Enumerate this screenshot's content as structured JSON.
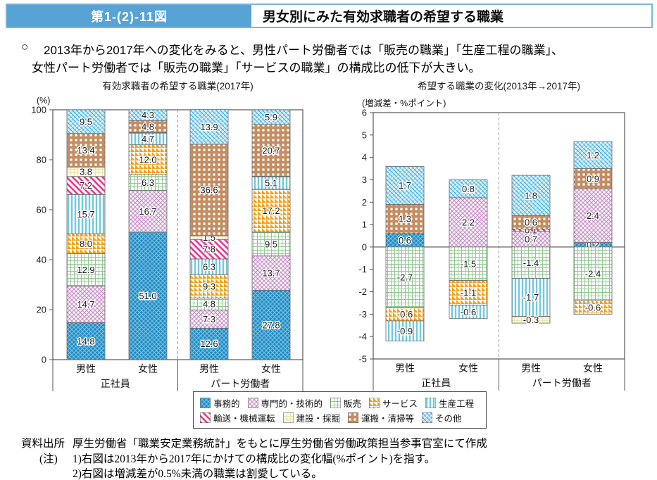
{
  "header": {
    "figure_no": "第1-(2)-11図",
    "title": "男女別にみた有効求職者の希望する職業"
  },
  "summary": {
    "bullet": "○",
    "line1": "2013年から2017年への変化をみると、男性パート労働者では「販売の職業」「生産工程の職業」、",
    "line2": "女性パート労働者では「販売の職業」「サービスの職業」の構成比の低下が大きい。"
  },
  "palette": {
    "header_fill": "#58a3d6",
    "header_border": "#7ab5e0",
    "axis": "#555555",
    "divider": "#999999",
    "segment_border": "#6a6a6a",
    "label_text": "#1b1b1b"
  },
  "categories": [
    {
      "id": "jimu",
      "label": "事務的",
      "pat": "weave",
      "base": "#2287bd",
      "fg": "#6fc0e6"
    },
    {
      "id": "senmon",
      "label": "専門的・技術的",
      "pat": "weave",
      "base": "#fdf6fd",
      "fg": "#c793c7"
    },
    {
      "id": "hanbai",
      "label": "販売",
      "pat": "grid",
      "base": "#ffffff",
      "fg": "#90c890"
    },
    {
      "id": "service",
      "label": "サービス",
      "pat": "triangles",
      "base": "#f5a11f",
      "fg": "#ffffff"
    },
    {
      "id": "seisan",
      "label": "生産工程",
      "pat": "vstripes",
      "base": "#ffffff",
      "fg": "#72c8dd"
    },
    {
      "id": "yuso",
      "label": "輸送・機械運転",
      "pat": "dstripes",
      "base": "#ffffff",
      "fg": "#e5368a"
    },
    {
      "id": "kensetsu",
      "label": "建設・採掘",
      "pat": "grid",
      "base": "#faf8df",
      "fg": "#e7e3b2"
    },
    {
      "id": "unpan",
      "label": "運搬・清掃等",
      "pat": "dots",
      "base": "#c28d5e",
      "fg": "#ffffff",
      "fg2": "#e2808f"
    },
    {
      "id": "sonota",
      "label": "その他",
      "pat": "weave2",
      "base": "#b3e2f5",
      "fg": "#47aede",
      "fg2": "#ffffff"
    }
  ],
  "legend_rows": [
    [
      "jimu",
      "senmon",
      "hanbai",
      "service",
      "seisan"
    ],
    [
      "yuso",
      "kensetsu",
      "unpan",
      "sonota"
    ]
  ],
  "chart_data": [
    {
      "type": "bar",
      "stacked": true,
      "title": "有効求職者の希望する職業(2017年)",
      "unit_label": "(%)",
      "ylim": [
        0,
        100
      ],
      "yticks": [
        0,
        20,
        40,
        60,
        80,
        100
      ],
      "zero_line": false,
      "groups": [
        {
          "label": "正社員",
          "bars": [
            {
              "label": "男性",
              "segments": [
                {
                  "c": "jimu",
                  "v": 14.8
                },
                {
                  "c": "senmon",
                  "v": 14.7
                },
                {
                  "c": "hanbai",
                  "v": 12.9
                },
                {
                  "c": "service",
                  "v": 8.0
                },
                {
                  "c": "seisan",
                  "v": 15.7
                },
                {
                  "c": "yuso",
                  "v": 7.2
                },
                {
                  "c": "kensetsu",
                  "v": 3.8
                },
                {
                  "c": "unpan",
                  "v": 13.4
                },
                {
                  "c": "sonota",
                  "v": 9.5
                }
              ]
            },
            {
              "label": "女性",
              "segments": [
                {
                  "c": "jimu",
                  "v": 51.0
                },
                {
                  "c": "senmon",
                  "v": 16.7
                },
                {
                  "c": "hanbai",
                  "v": 6.3
                },
                {
                  "c": "service",
                  "v": 12.0
                },
                {
                  "c": "seisan",
                  "v": 4.7
                },
                {
                  "c": "yuso",
                  "v": 0.2,
                  "hide": true
                },
                {
                  "c": "unpan",
                  "v": 4.8
                },
                {
                  "c": "sonota",
                  "v": 4.3
                }
              ]
            }
          ]
        },
        {
          "label": "パート労働者",
          "bars": [
            {
              "label": "男性",
              "segments": [
                {
                  "c": "jimu",
                  "v": 12.6
                },
                {
                  "c": "senmon",
                  "v": 7.3
                },
                {
                  "c": "hanbai",
                  "v": 4.8
                },
                {
                  "c": "service",
                  "v": 9.3
                },
                {
                  "c": "seisan",
                  "v": 6.3
                },
                {
                  "c": "yuso",
                  "v": 7.8
                },
                {
                  "c": "kensetsu",
                  "v": 1.5
                },
                {
                  "c": "unpan",
                  "v": 36.6
                },
                {
                  "c": "sonota",
                  "v": 13.9
                }
              ]
            },
            {
              "label": "女性",
              "segments": [
                {
                  "c": "jimu",
                  "v": 27.8
                },
                {
                  "c": "senmon",
                  "v": 13.7
                },
                {
                  "c": "hanbai",
                  "v": 9.5
                },
                {
                  "c": "service",
                  "v": 17.2
                },
                {
                  "c": "seisan",
                  "v": 5.1
                },
                {
                  "c": "yuso",
                  "v": 0.1,
                  "hide": true
                },
                {
                  "c": "unpan",
                  "v": 20.7
                },
                {
                  "c": "sonota",
                  "v": 5.9
                }
              ]
            }
          ]
        }
      ]
    },
    {
      "type": "bar",
      "stacked": true,
      "title": "希望する職業の変化(2013年→2017年)",
      "unit_label": "(増減差・%ポイント)",
      "ylim": [
        -5,
        6
      ],
      "yticks": [
        6,
        5,
        4,
        3,
        2,
        1,
        0,
        -1,
        -2,
        -3,
        -4,
        -5
      ],
      "zero_line": true,
      "groups": [
        {
          "label": "正社員",
          "bars": [
            {
              "label": "男性",
              "segments": [
                {
                  "c": "jimu",
                  "v": 0.6
                },
                {
                  "c": "hanbai",
                  "v": -2.7
                },
                {
                  "c": "service",
                  "v": -0.6
                },
                {
                  "c": "seisan",
                  "v": -0.9
                },
                {
                  "c": "unpan",
                  "v": 1.3
                },
                {
                  "c": "sonota",
                  "v": 1.7
                }
              ]
            },
            {
              "label": "女性",
              "segments": [
                {
                  "c": "senmon",
                  "v": 2.2
                },
                {
                  "c": "hanbai",
                  "v": -1.5
                },
                {
                  "c": "service",
                  "v": -1.1
                },
                {
                  "c": "seisan",
                  "v": -0.6
                },
                {
                  "c": "sonota",
                  "v": 0.8
                }
              ]
            }
          ]
        },
        {
          "label": "パート労働者",
          "bars": [
            {
              "label": "男性",
              "segments": [
                {
                  "c": "senmon",
                  "v": 0.7
                },
                {
                  "c": "hanbai",
                  "v": -1.4
                },
                {
                  "c": "seisan",
                  "v": -1.7
                },
                {
                  "c": "yuso",
                  "v": 0.1
                },
                {
                  "c": "kensetsu",
                  "v": -0.3
                },
                {
                  "c": "unpan",
                  "v": 0.6
                },
                {
                  "c": "sonota",
                  "v": 1.8
                }
              ]
            },
            {
              "label": "女性",
              "segments": [
                {
                  "c": "jimu",
                  "v": 0.2
                },
                {
                  "c": "senmon",
                  "v": 2.4
                },
                {
                  "c": "hanbai",
                  "v": -2.4
                },
                {
                  "c": "service",
                  "v": -0.6
                },
                {
                  "c": "unpan",
                  "v": 0.9
                },
                {
                  "c": "sonota",
                  "v": 1.2
                }
              ]
            }
          ]
        }
      ]
    }
  ],
  "footer": {
    "source_label": "資料出所",
    "source_text": "厚生労働省「職業安定業務統計」をもとに厚生労働省労働政策担当参事官室にて作成",
    "note_label": "(注)",
    "notes": [
      "1)右図は2013年から2017年にかけての構成比の変化幅(%ポイント)を指す。",
      "2)右図は増減差が0.5%未満の職業は割愛している。"
    ]
  }
}
